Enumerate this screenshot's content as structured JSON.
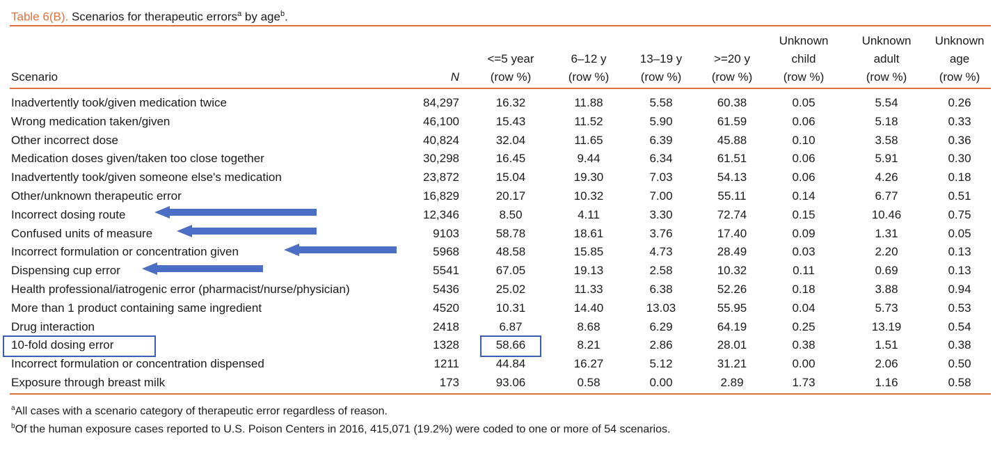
{
  "caption": {
    "label": "Table 6(B).",
    "text": "Scenarios for therapeutic errors",
    "sup_a": "a",
    "by": " by age",
    "sup_b": "b",
    "end": "."
  },
  "headers": {
    "scenario": "Scenario",
    "n": "N",
    "le5": [
      "<=5 year",
      "(row %)"
    ],
    "y612": [
      "6–12 y",
      "(row %)"
    ],
    "y1319": [
      "13–19 y",
      "(row %)"
    ],
    "ge20": [
      ">=20 y",
      "(row %)"
    ],
    "unk_child": [
      "Unknown",
      "child",
      "(row %)"
    ],
    "unk_adult": [
      "Unknown",
      "adult",
      "(row %)"
    ],
    "unk_age": [
      "Unknown",
      "age",
      "(row %)"
    ]
  },
  "rows": [
    {
      "scenario": "Inadvertently took/given medication twice",
      "n": "84,297",
      "le5": "16.32",
      "y612": "11.88",
      "y1319": "5.58",
      "ge20": "60.38",
      "uch": "0.05",
      "uad": "5.54",
      "uag": "0.26"
    },
    {
      "scenario": "Wrong medication taken/given",
      "n": "46,100",
      "le5": "15.43",
      "y612": "11.52",
      "y1319": "5.90",
      "ge20": "61.59",
      "uch": "0.06",
      "uad": "5.18",
      "uag": "0.33"
    },
    {
      "scenario": "Other incorrect dose",
      "n": "40,824",
      "le5": "32.04",
      "y612": "11.65",
      "y1319": "6.39",
      "ge20": "45.88",
      "uch": "0.10",
      "uad": "3.58",
      "uag": "0.36"
    },
    {
      "scenario": "Medication doses given/taken too close together",
      "n": "30,298",
      "le5": "16.45",
      "y612": "9.44",
      "y1319": "6.34",
      "ge20": "61.51",
      "uch": "0.06",
      "uad": "5.91",
      "uag": "0.30"
    },
    {
      "scenario": "Inadvertently took/given someone else's medication",
      "n": "23,872",
      "le5": "15.04",
      "y612": "19.30",
      "y1319": "7.03",
      "ge20": "54.13",
      "uch": "0.06",
      "uad": "4.26",
      "uag": "0.18"
    },
    {
      "scenario": "Other/unknown therapeutic error",
      "n": "16,829",
      "le5": "20.17",
      "y612": "10.32",
      "y1319": "7.00",
      "ge20": "55.11",
      "uch": "0.14",
      "uad": "6.77",
      "uag": "0.51"
    },
    {
      "scenario": "Incorrect dosing route",
      "n": "12,346",
      "le5": "8.50",
      "y612": "4.11",
      "y1319": "3.30",
      "ge20": "72.74",
      "uch": "0.15",
      "uad": "10.46",
      "uag": "0.75"
    },
    {
      "scenario": "Confused units of measure",
      "n": "9103",
      "le5": "58.78",
      "y612": "18.61",
      "y1319": "3.76",
      "ge20": "17.40",
      "uch": "0.09",
      "uad": "1.31",
      "uag": "0.05"
    },
    {
      "scenario": "Incorrect formulation or concentration given",
      "n": "5968",
      "le5": "48.58",
      "y612": "15.85",
      "y1319": "4.73",
      "ge20": "28.49",
      "uch": "0.03",
      "uad": "2.20",
      "uag": "0.13"
    },
    {
      "scenario": "Dispensing cup error",
      "n": "5541",
      "le5": "67.05",
      "y612": "19.13",
      "y1319": "2.58",
      "ge20": "10.32",
      "uch": "0.11",
      "uad": "0.69",
      "uag": "0.13"
    },
    {
      "scenario": "Health professional/iatrogenic error (pharmacist/nurse/physician)",
      "n": "5436",
      "le5": "25.02",
      "y612": "11.33",
      "y1319": "6.38",
      "ge20": "52.26",
      "uch": "0.18",
      "uad": "3.88",
      "uag": "0.94"
    },
    {
      "scenario": "More than 1 product containing same ingredient",
      "n": "4520",
      "le5": "10.31",
      "y612": "14.40",
      "y1319": "13.03",
      "ge20": "55.95",
      "uch": "0.04",
      "uad": "5.73",
      "uag": "0.53"
    },
    {
      "scenario": "Drug interaction",
      "n": "2418",
      "le5": "6.87",
      "y612": "8.68",
      "y1319": "6.29",
      "ge20": "64.19",
      "uch": "0.25",
      "uad": "13.19",
      "uag": "0.54"
    },
    {
      "scenario": "10-fold dosing error",
      "n": "1328",
      "le5": "58.66",
      "y612": "8.21",
      "y1319": "2.86",
      "ge20": "28.01",
      "uch": "0.38",
      "uad": "1.51",
      "uag": "0.38"
    },
    {
      "scenario": "Incorrect formulation or concentration dispensed",
      "n": "1211",
      "le5": "44.84",
      "y612": "16.27",
      "y1319": "5.12",
      "ge20": "31.21",
      "uch": "0.00",
      "uad": "2.06",
      "uag": "0.50"
    },
    {
      "scenario": "Exposure through breast milk",
      "n": "173",
      "le5": "93.06",
      "y612": "0.58",
      "y1319": "0.00",
      "ge20": "2.89",
      "uch": "1.73",
      "uad": "1.16",
      "uag": "0.58"
    }
  ],
  "annotations": {
    "arrow_color": "#4a6fc4",
    "box_color": "#3a5db5",
    "rule_color": "#e0703c"
  },
  "footnotes": [
    {
      "mark": "a",
      "text": "All cases with a scenario category of therapeutic error regardless of reason."
    },
    {
      "mark": "b",
      "text": "Of the human exposure cases reported to U.S. Poison Centers in 2016, 415,071 (19.2%) were coded to one or more of 54 scenarios."
    }
  ]
}
